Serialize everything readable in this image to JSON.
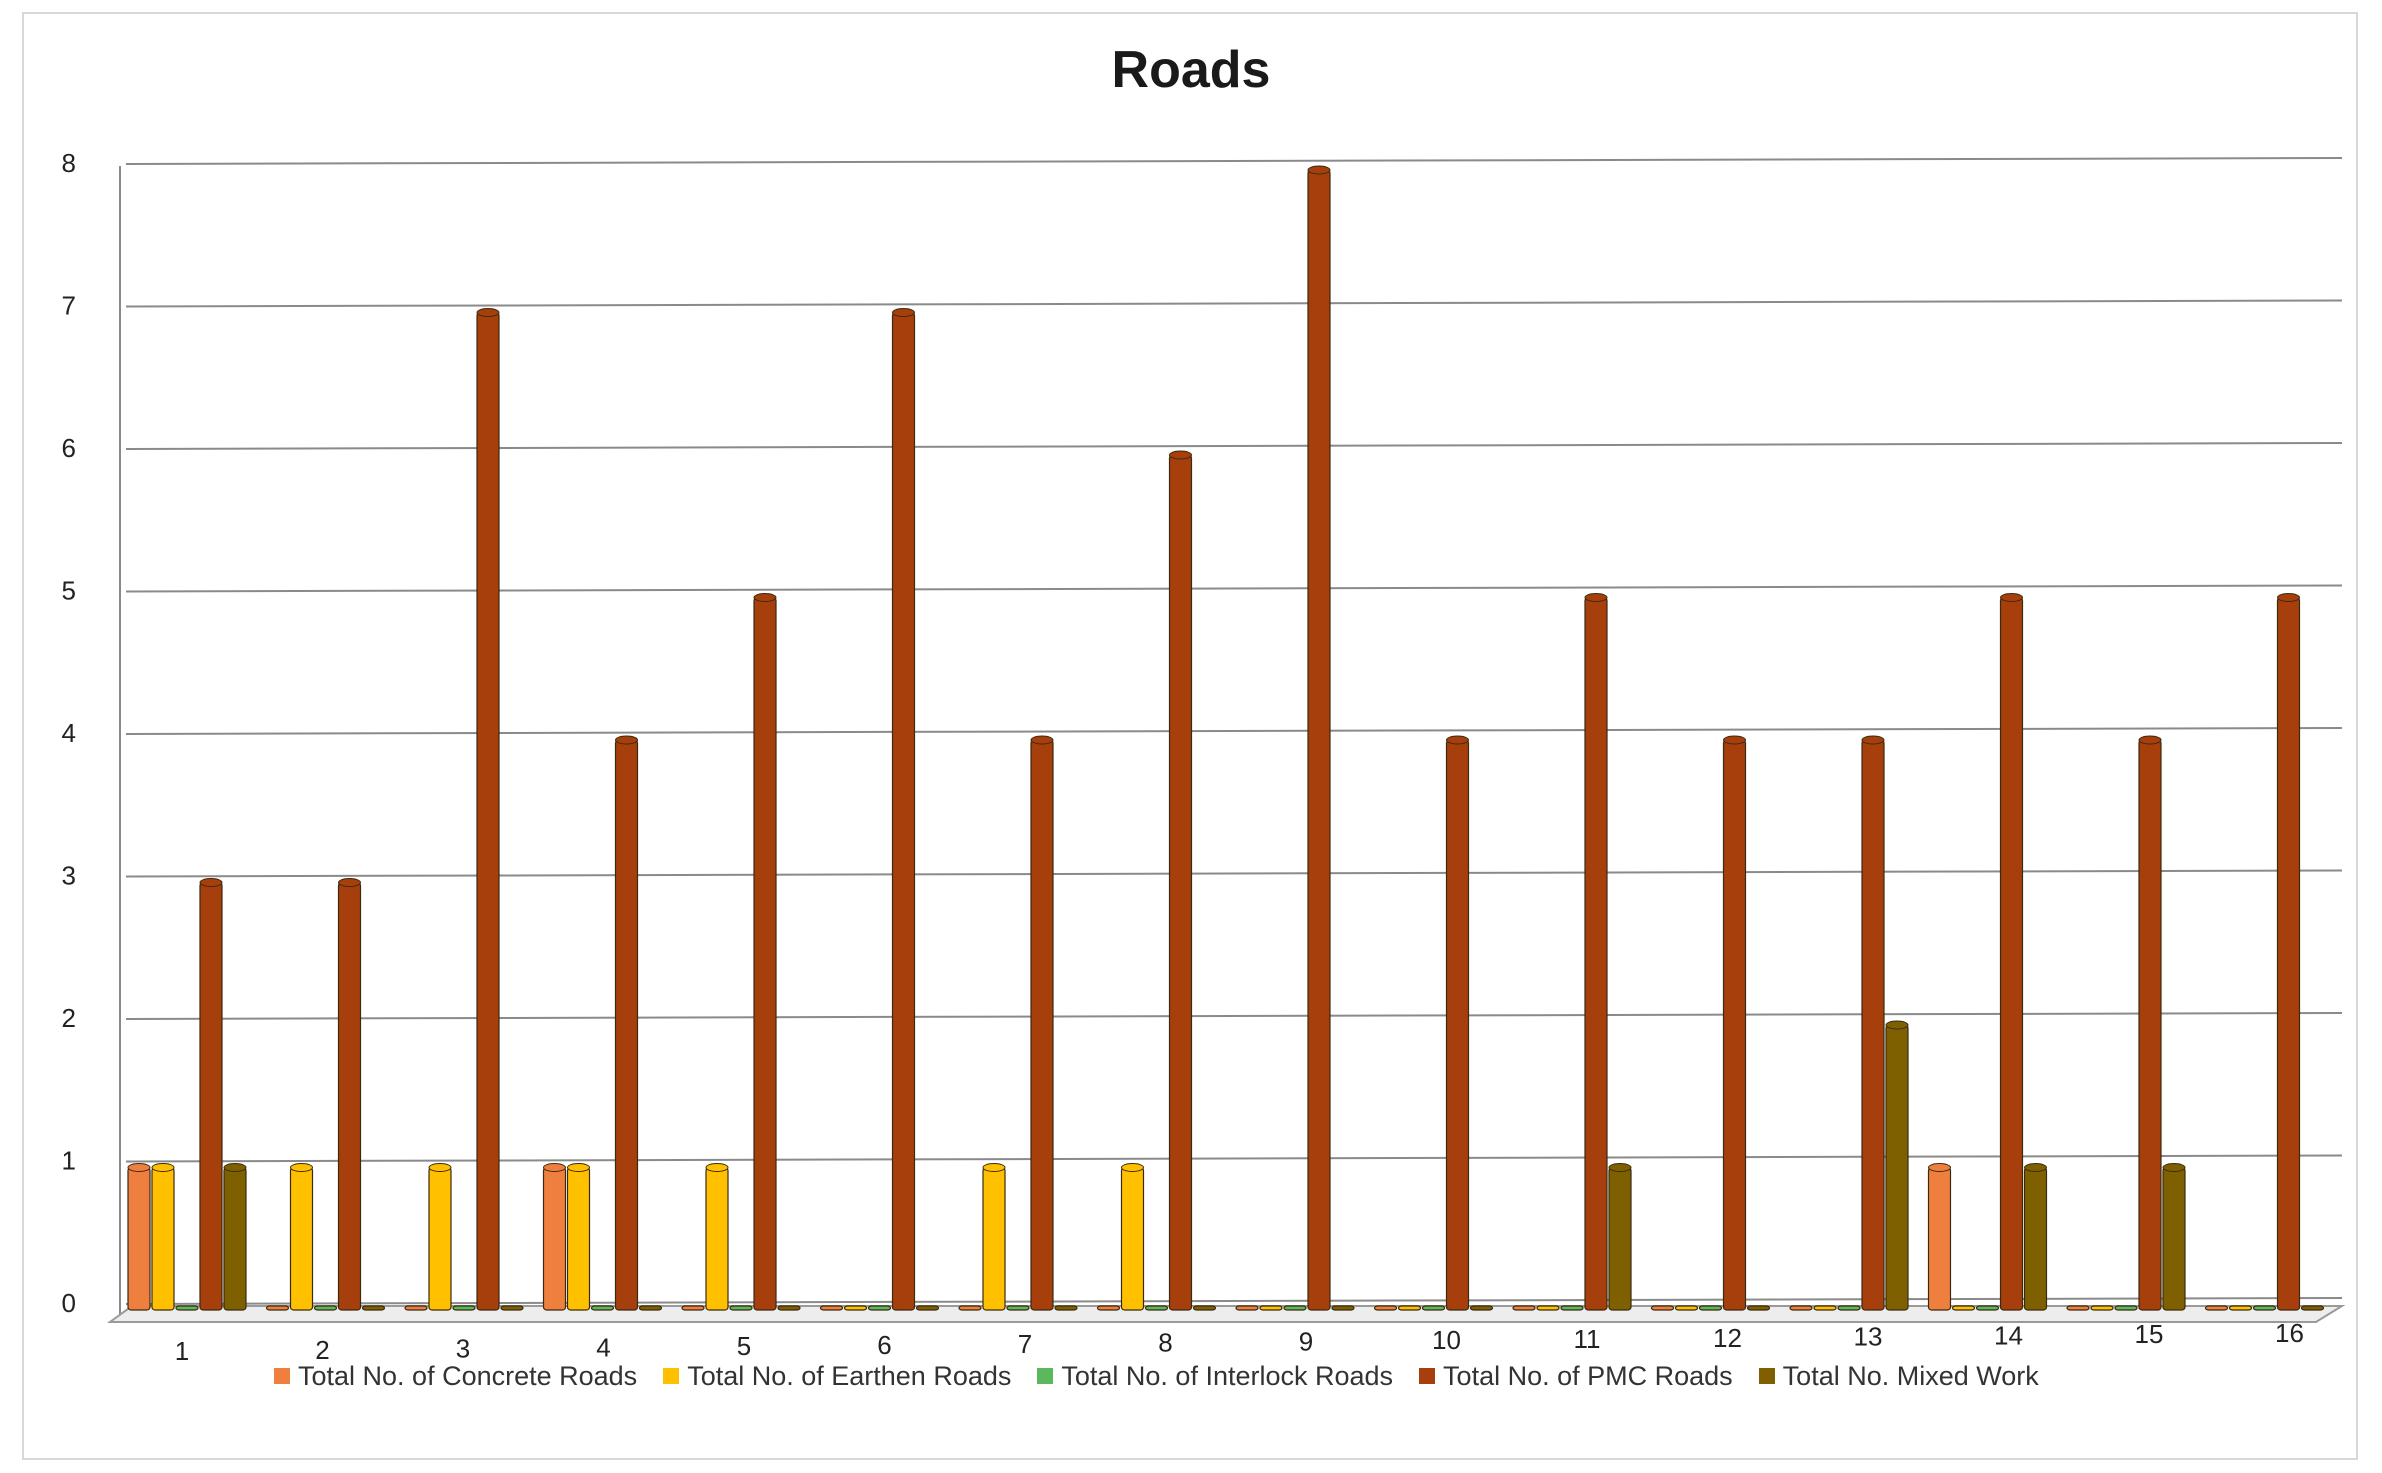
{
  "chart_data": {
    "type": "bar",
    "title": "Roads",
    "xlabel": "",
    "ylabel": "",
    "categories": [
      "1",
      "2",
      "3",
      "4",
      "5",
      "6",
      "7",
      "8",
      "9",
      "10",
      "11",
      "12",
      "13",
      "14",
      "15",
      "16"
    ],
    "ylim": [
      0,
      8
    ],
    "yticks": [
      "0",
      "1",
      "2",
      "3",
      "4",
      "5",
      "6",
      "7",
      "8"
    ],
    "grid": true,
    "legend_position": "bottom",
    "series": [
      {
        "name": "Total No. of Concrete Roads",
        "color": "#ef7f3f",
        "values": [
          1,
          0,
          0,
          1,
          0,
          0,
          0,
          0,
          0,
          0,
          0,
          0,
          0,
          1,
          0,
          0
        ]
      },
      {
        "name": "Total No. of Earthen Roads",
        "color": "#ffc000",
        "values": [
          1,
          1,
          1,
          1,
          1,
          0,
          1,
          1,
          0,
          0,
          0,
          0,
          0,
          0,
          0,
          0
        ]
      },
      {
        "name": "Total No. of Interlock Roads",
        "color": "#5cb85c",
        "values": [
          0,
          0,
          0,
          0,
          0,
          0,
          0,
          0,
          0,
          0,
          0,
          0,
          0,
          0,
          0,
          0
        ]
      },
      {
        "name": "Total No. of PMC Roads",
        "color": "#a63f0c",
        "values": [
          3,
          3,
          7,
          4,
          5,
          7,
          4,
          6,
          8,
          4,
          5,
          4,
          4,
          5,
          4,
          5
        ]
      },
      {
        "name": "Total No. Mixed Work",
        "color": "#7f6000",
        "values": [
          1,
          0,
          0,
          0,
          0,
          0,
          0,
          0,
          0,
          0,
          1,
          0,
          2,
          1,
          1,
          0
        ]
      }
    ]
  }
}
